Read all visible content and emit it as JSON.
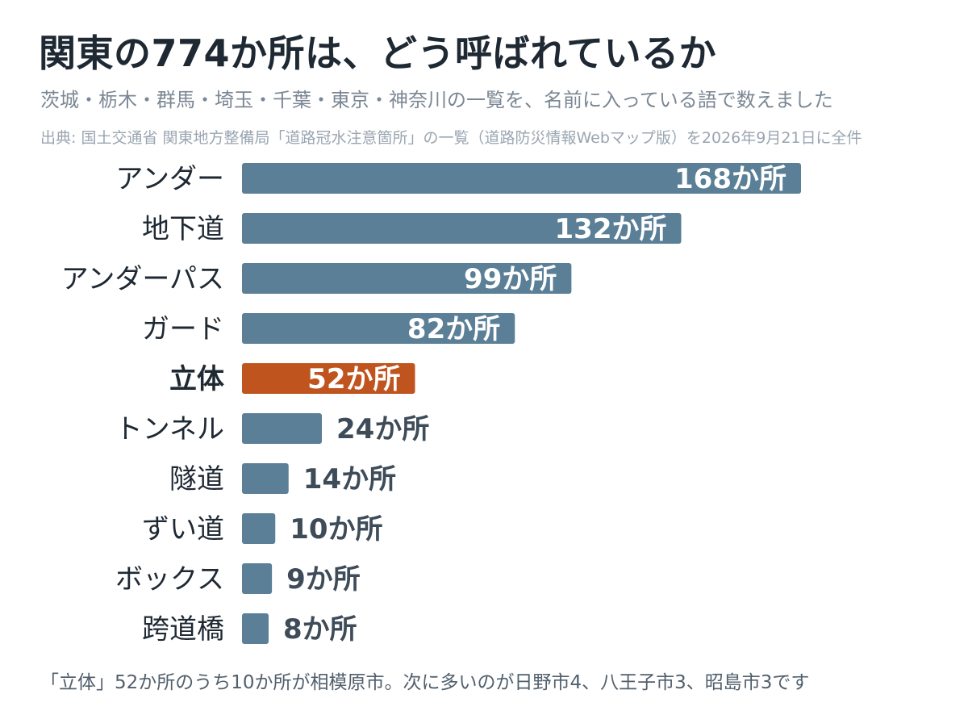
{
  "header": {
    "title": "関東の774か所は、どう呼ばれているか",
    "subtitle": "茨城・栃木・群馬・埼玉・千葉・東京・神奈川の一覧を、名前に入っている語で数えました",
    "source": "出典: 国土交通省 関東地方整備局「道路冠水注意箇所」の一覧（道路防災情報Webマップ版）を2026年9月21日に全件"
  },
  "footnote": "「立体」52か所のうち10か所が相模原市。次に多いのが日野市4、八王子市3、昭島市3です",
  "chart_data": {
    "type": "bar",
    "orientation": "horizontal",
    "categories": [
      "アンダー",
      "地下道",
      "アンダーパス",
      "ガード",
      "立体",
      "トンネル",
      "隧道",
      "ずい道",
      "ボックス",
      "跨道橋"
    ],
    "values": [
      168,
      132,
      99,
      82,
      52,
      24,
      14,
      10,
      9,
      8
    ],
    "value_labels": [
      "168か所",
      "132か所",
      "99か所",
      "82か所",
      "52か所",
      "24か所",
      "14か所",
      "10か所",
      "9か所",
      "8か所"
    ],
    "highlight": "立体",
    "colors": {
      "bar": "#5a7f96",
      "highlight": "#c0541f",
      "label_outside": "#3e4c59",
      "label_inside": "#ffffff"
    },
    "grid": false,
    "legend": "none"
  }
}
